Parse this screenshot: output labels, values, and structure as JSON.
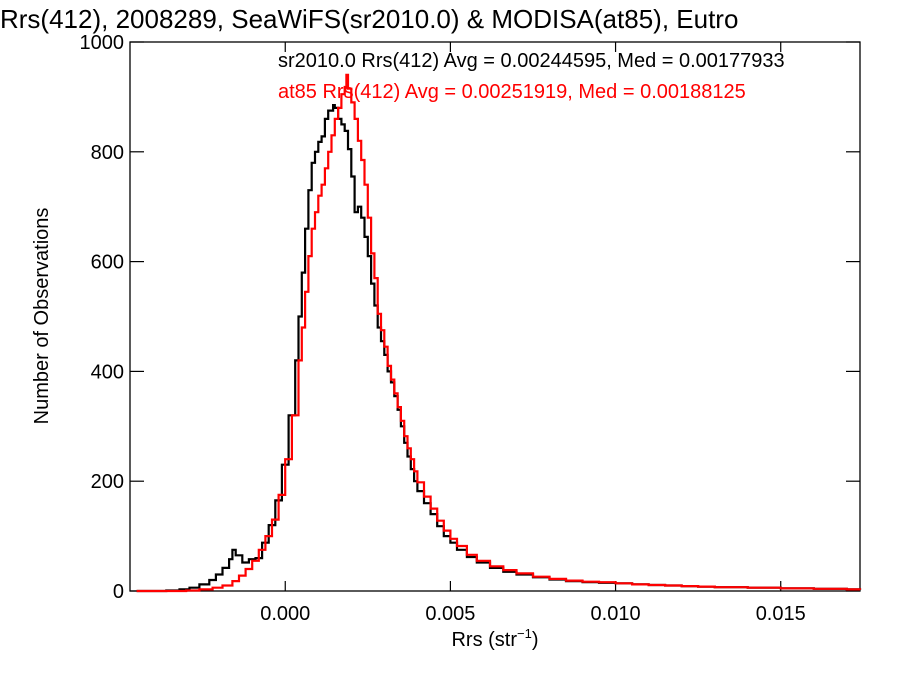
{
  "chart_data": {
    "type": "line",
    "title": "Rrs(412), 2008289, SeaWiFS(sr2010.0) & MODISA(at85), Eutro",
    "xlabel": "Rrs (str",
    "xlabel_sup": "−1",
    "xlabel_close": ")",
    "ylabel": "Number of Observations",
    "xlim": [
      -0.0047,
      0.0174
    ],
    "ylim": [
      0,
      1000
    ],
    "x_ticks": [
      0.0,
      0.005,
      0.01,
      0.015
    ],
    "x_tick_labels": [
      "0.000",
      "0.005",
      "0.010",
      "0.015"
    ],
    "y_ticks": [
      0,
      200,
      400,
      600,
      800,
      1000
    ],
    "y_tick_labels": [
      "0",
      "200",
      "400",
      "600",
      "800",
      "1000"
    ],
    "grid": false,
    "legend_placement": "top-right",
    "series": [
      {
        "name": "sr2010.0",
        "color": "#000000",
        "legend_text": "sr2010.0 Rrs(412) Avg = 0.00244595, Med = 0.00177933",
        "peak_x": 0.00145,
        "points": [
          [
            -0.0045,
            0
          ],
          [
            -0.004,
            0
          ],
          [
            -0.0036,
            1
          ],
          [
            -0.0032,
            3
          ],
          [
            -0.0029,
            6
          ],
          [
            -0.0026,
            12
          ],
          [
            -0.0023,
            20
          ],
          [
            -0.0021,
            30
          ],
          [
            -0.0019,
            42
          ],
          [
            -0.0017,
            58
          ],
          [
            -0.0016,
            75
          ],
          [
            -0.0015,
            65
          ],
          [
            -0.0013,
            52
          ],
          [
            -0.0011,
            58
          ],
          [
            -0.0009,
            60
          ],
          [
            -0.0007,
            88
          ],
          [
            -0.0005,
            120
          ],
          [
            -0.0003,
            165
          ],
          [
            -0.0001,
            230
          ],
          [
            0.0001,
            320
          ],
          [
            0.0003,
            420
          ],
          [
            0.0004,
            500
          ],
          [
            0.0005,
            580
          ],
          [
            0.0006,
            660
          ],
          [
            0.0007,
            730
          ],
          [
            0.0008,
            780
          ],
          [
            0.0009,
            800
          ],
          [
            0.001,
            818
          ],
          [
            0.0011,
            828
          ],
          [
            0.0012,
            860
          ],
          [
            0.0013,
            875
          ],
          [
            0.00145,
            885
          ],
          [
            0.0015,
            880
          ],
          [
            0.0016,
            860
          ],
          [
            0.0017,
            850
          ],
          [
            0.0018,
            838
          ],
          [
            0.0019,
            805
          ],
          [
            0.002,
            755
          ],
          [
            0.0021,
            690
          ],
          [
            0.0022,
            700
          ],
          [
            0.0023,
            680
          ],
          [
            0.0024,
            645
          ],
          [
            0.0025,
            610
          ],
          [
            0.0026,
            560
          ],
          [
            0.0027,
            520
          ],
          [
            0.0028,
            480
          ],
          [
            0.0029,
            455
          ],
          [
            0.003,
            430
          ],
          [
            0.0031,
            400
          ],
          [
            0.0032,
            380
          ],
          [
            0.0033,
            355
          ],
          [
            0.0034,
            330
          ],
          [
            0.0035,
            300
          ],
          [
            0.0036,
            270
          ],
          [
            0.0037,
            245
          ],
          [
            0.0038,
            222
          ],
          [
            0.0039,
            200
          ],
          [
            0.004,
            182
          ],
          [
            0.0042,
            160
          ],
          [
            0.0044,
            140
          ],
          [
            0.0046,
            118
          ],
          [
            0.0048,
            100
          ],
          [
            0.005,
            88
          ],
          [
            0.0052,
            75
          ],
          [
            0.0055,
            62
          ],
          [
            0.0058,
            52
          ],
          [
            0.0062,
            42
          ],
          [
            0.0066,
            35
          ],
          [
            0.007,
            30
          ],
          [
            0.0075,
            25
          ],
          [
            0.008,
            21
          ],
          [
            0.0085,
            18
          ],
          [
            0.009,
            16
          ],
          [
            0.0095,
            15
          ],
          [
            0.01,
            14
          ],
          [
            0.0105,
            12
          ],
          [
            0.011,
            11
          ],
          [
            0.0115,
            10
          ],
          [
            0.012,
            9
          ],
          [
            0.0125,
            8
          ],
          [
            0.013,
            7
          ],
          [
            0.014,
            6
          ],
          [
            0.015,
            5
          ],
          [
            0.016,
            4
          ],
          [
            0.017,
            3
          ],
          [
            0.0174,
            2
          ]
        ]
      },
      {
        "name": "at85",
        "color": "#ff0000",
        "legend_text": "at85 Rrs(412) Avg = 0.00251919, Med = 0.00188125",
        "peak_x": 0.00185,
        "points": [
          [
            -0.0045,
            0
          ],
          [
            -0.0036,
            0
          ],
          [
            -0.003,
            1
          ],
          [
            -0.0026,
            3
          ],
          [
            -0.0022,
            6
          ],
          [
            -0.0019,
            10
          ],
          [
            -0.0016,
            18
          ],
          [
            -0.0014,
            28
          ],
          [
            -0.0012,
            40
          ],
          [
            -0.001,
            55
          ],
          [
            -0.0008,
            75
          ],
          [
            -0.0006,
            100
          ],
          [
            -0.0004,
            130
          ],
          [
            -0.0002,
            175
          ],
          [
            0.0,
            240
          ],
          [
            0.0002,
            320
          ],
          [
            0.0004,
            420
          ],
          [
            0.0005,
            480
          ],
          [
            0.0006,
            545
          ],
          [
            0.0007,
            610
          ],
          [
            0.0008,
            660
          ],
          [
            0.0009,
            690
          ],
          [
            0.001,
            720
          ],
          [
            0.0011,
            740
          ],
          [
            0.0012,
            770
          ],
          [
            0.0013,
            800
          ],
          [
            0.0014,
            830
          ],
          [
            0.0015,
            860
          ],
          [
            0.0016,
            880
          ],
          [
            0.0017,
            905
          ],
          [
            0.0018,
            918
          ],
          [
            0.00185,
            940
          ],
          [
            0.0019,
            915
          ],
          [
            0.002,
            890
          ],
          [
            0.0021,
            860
          ],
          [
            0.0022,
            820
          ],
          [
            0.0023,
            785
          ],
          [
            0.0024,
            740
          ],
          [
            0.0025,
            680
          ],
          [
            0.0026,
            615
          ],
          [
            0.0027,
            570
          ],
          [
            0.0028,
            505
          ],
          [
            0.0029,
            475
          ],
          [
            0.003,
            445
          ],
          [
            0.0031,
            410
          ],
          [
            0.0032,
            385
          ],
          [
            0.0033,
            360
          ],
          [
            0.0034,
            335
          ],
          [
            0.0035,
            310
          ],
          [
            0.0036,
            282
          ],
          [
            0.0037,
            260
          ],
          [
            0.0038,
            240
          ],
          [
            0.0039,
            218
          ],
          [
            0.004,
            198
          ],
          [
            0.0042,
            172
          ],
          [
            0.0044,
            150
          ],
          [
            0.0046,
            128
          ],
          [
            0.0048,
            110
          ],
          [
            0.005,
            95
          ],
          [
            0.0052,
            82
          ],
          [
            0.0055,
            66
          ],
          [
            0.0058,
            55
          ],
          [
            0.0062,
            45
          ],
          [
            0.0066,
            38
          ],
          [
            0.007,
            32
          ],
          [
            0.0075,
            26
          ],
          [
            0.008,
            22
          ],
          [
            0.0085,
            19
          ],
          [
            0.009,
            17
          ],
          [
            0.0095,
            16
          ],
          [
            0.01,
            14
          ],
          [
            0.0105,
            12
          ],
          [
            0.011,
            11
          ],
          [
            0.0115,
            10
          ],
          [
            0.012,
            9
          ],
          [
            0.0125,
            8
          ],
          [
            0.013,
            7
          ],
          [
            0.014,
            6
          ],
          [
            0.015,
            5
          ],
          [
            0.016,
            4
          ],
          [
            0.017,
            3
          ],
          [
            0.0174,
            2
          ]
        ]
      }
    ]
  }
}
